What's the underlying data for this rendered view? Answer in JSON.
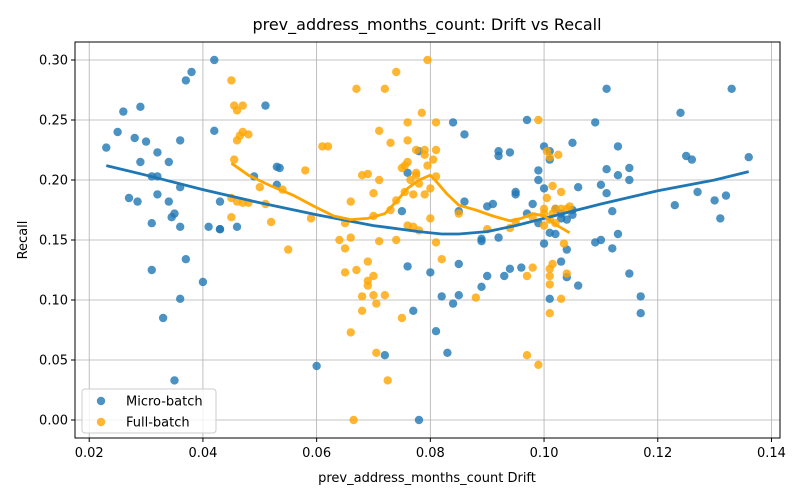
{
  "chart_data": {
    "type": "scatter",
    "title": "prev_address_months_count: Drift vs Recall",
    "xlabel": "prev_address_months_count Drift",
    "ylabel": "Recall",
    "xlim": [
      0.0175,
      0.1415
    ],
    "ylim": [
      -0.015,
      0.315
    ],
    "xticks": [
      0.02,
      0.04,
      0.06,
      0.08,
      0.1,
      0.12,
      0.14
    ],
    "xtick_labels": [
      "0.02",
      "0.04",
      "0.06",
      "0.08",
      "0.10",
      "0.12",
      "0.14"
    ],
    "yticks": [
      0.0,
      0.05,
      0.1,
      0.15,
      0.2,
      0.25,
      0.3
    ],
    "ytick_labels": [
      "0.00",
      "0.05",
      "0.10",
      "0.15",
      "0.20",
      "0.25",
      "0.30"
    ],
    "grid": true,
    "legend_position": "lower-left",
    "series": [
      {
        "name": "Micro-batch",
        "color": "#1f77b4",
        "points": [
          [
            0.023,
            0.227
          ],
          [
            0.025,
            0.24
          ],
          [
            0.026,
            0.257
          ],
          [
            0.027,
            0.185
          ],
          [
            0.028,
            0.235
          ],
          [
            0.0285,
            0.182
          ],
          [
            0.029,
            0.261
          ],
          [
            0.029,
            0.215
          ],
          [
            0.03,
            0.232
          ],
          [
            0.031,
            0.125
          ],
          [
            0.031,
            0.164
          ],
          [
            0.031,
            0.203
          ],
          [
            0.032,
            0.223
          ],
          [
            0.032,
            0.203
          ],
          [
            0.032,
            0.188
          ],
          [
            0.033,
            0.085
          ],
          [
            0.034,
            0.215
          ],
          [
            0.034,
            0.182
          ],
          [
            0.0345,
            0.169
          ],
          [
            0.035,
            0.172
          ],
          [
            0.035,
            0.033
          ],
          [
            0.036,
            0.101
          ],
          [
            0.036,
            0.161
          ],
          [
            0.036,
            0.233
          ],
          [
            0.036,
            0.194
          ],
          [
            0.037,
            0.134
          ],
          [
            0.037,
            0.283
          ],
          [
            0.038,
            0.29
          ],
          [
            0.04,
            0.115
          ],
          [
            0.041,
            0.161
          ],
          [
            0.042,
            0.241
          ],
          [
            0.042,
            0.3
          ],
          [
            0.043,
            0.159
          ],
          [
            0.043,
            0.159
          ],
          [
            0.043,
            0.182
          ],
          [
            0.046,
            0.161
          ],
          [
            0.049,
            0.203
          ],
          [
            0.051,
            0.262
          ],
          [
            0.053,
            0.211
          ],
          [
            0.053,
            0.196
          ],
          [
            0.0535,
            0.21
          ],
          [
            0.06,
            0.045
          ],
          [
            0.072,
            0.054
          ],
          [
            0.075,
            0.174
          ],
          [
            0.076,
            0.128
          ],
          [
            0.076,
            0.206
          ],
          [
            0.077,
            0.091
          ],
          [
            0.078,
            0.0
          ],
          [
            0.078,
            0.224
          ],
          [
            0.08,
            0.123
          ],
          [
            0.081,
            0.074
          ],
          [
            0.082,
            0.103
          ],
          [
            0.083,
            0.056
          ],
          [
            0.084,
            0.248
          ],
          [
            0.084,
            0.097
          ],
          [
            0.085,
            0.104
          ],
          [
            0.085,
            0.174
          ],
          [
            0.085,
            0.13
          ],
          [
            0.086,
            0.238
          ],
          [
            0.086,
            0.182
          ],
          [
            0.089,
            0.111
          ],
          [
            0.089,
            0.151
          ],
          [
            0.089,
            0.149
          ],
          [
            0.09,
            0.12
          ],
          [
            0.09,
            0.178
          ],
          [
            0.091,
            0.18
          ],
          [
            0.092,
            0.224
          ],
          [
            0.092,
            0.22
          ],
          [
            0.092,
            0.152
          ],
          [
            0.093,
            0.12
          ],
          [
            0.094,
            0.126
          ],
          [
            0.094,
            0.223
          ],
          [
            0.095,
            0.188
          ],
          [
            0.095,
            0.19
          ],
          [
            0.096,
            0.127
          ],
          [
            0.097,
            0.172
          ],
          [
            0.097,
            0.25
          ],
          [
            0.098,
            0.18
          ],
          [
            0.099,
            0.208
          ],
          [
            0.099,
            0.2
          ],
          [
            0.099,
            0.164
          ],
          [
            0.1,
            0.228
          ],
          [
            0.1,
            0.193
          ],
          [
            0.1,
            0.147
          ],
          [
            0.101,
            0.224
          ],
          [
            0.101,
            0.217
          ],
          [
            0.101,
            0.101
          ],
          [
            0.101,
            0.156
          ],
          [
            0.102,
            0.155
          ],
          [
            0.102,
            0.176
          ],
          [
            0.103,
            0.172
          ],
          [
            0.103,
            0.168
          ],
          [
            0.103,
            0.132
          ],
          [
            0.104,
            0.167
          ],
          [
            0.104,
            0.142
          ],
          [
            0.104,
            0.119
          ],
          [
            0.105,
            0.231
          ],
          [
            0.105,
            0.171
          ],
          [
            0.105,
            0.175
          ],
          [
            0.106,
            0.194
          ],
          [
            0.106,
            0.112
          ],
          [
            0.109,
            0.248
          ],
          [
            0.109,
            0.148
          ],
          [
            0.11,
            0.196
          ],
          [
            0.11,
            0.15
          ],
          [
            0.111,
            0.209
          ],
          [
            0.111,
            0.189
          ],
          [
            0.111,
            0.276
          ],
          [
            0.112,
            0.143
          ],
          [
            0.112,
            0.174
          ],
          [
            0.113,
            0.204
          ],
          [
            0.113,
            0.228
          ],
          [
            0.113,
            0.155
          ],
          [
            0.115,
            0.122
          ],
          [
            0.115,
            0.21
          ],
          [
            0.115,
            0.2
          ],
          [
            0.117,
            0.103
          ],
          [
            0.117,
            0.089
          ],
          [
            0.123,
            0.179
          ],
          [
            0.124,
            0.256
          ],
          [
            0.125,
            0.22
          ],
          [
            0.126,
            0.217
          ],
          [
            0.127,
            0.19
          ],
          [
            0.13,
            0.183
          ],
          [
            0.131,
            0.168
          ],
          [
            0.132,
            0.187
          ],
          [
            0.133,
            0.276
          ],
          [
            0.136,
            0.219
          ]
        ],
        "trend": [
          [
            0.023,
            0.212
          ],
          [
            0.03,
            0.204
          ],
          [
            0.04,
            0.192
          ],
          [
            0.05,
            0.181
          ],
          [
            0.06,
            0.171
          ],
          [
            0.07,
            0.162
          ],
          [
            0.078,
            0.157
          ],
          [
            0.082,
            0.155
          ],
          [
            0.085,
            0.155
          ],
          [
            0.09,
            0.157
          ],
          [
            0.095,
            0.162
          ],
          [
            0.1,
            0.168
          ],
          [
            0.11,
            0.18
          ],
          [
            0.12,
            0.191
          ],
          [
            0.13,
            0.2
          ],
          [
            0.136,
            0.207
          ]
        ]
      },
      {
        "name": "Full-batch",
        "color": "#ffa500",
        "points": [
          [
            0.045,
            0.283
          ],
          [
            0.045,
            0.185
          ],
          [
            0.045,
            0.169
          ],
          [
            0.0455,
            0.217
          ],
          [
            0.0455,
            0.262
          ],
          [
            0.046,
            0.258
          ],
          [
            0.046,
            0.182
          ],
          [
            0.046,
            0.233
          ],
          [
            0.0465,
            0.237
          ],
          [
            0.047,
            0.262
          ],
          [
            0.047,
            0.24
          ],
          [
            0.047,
            0.181
          ],
          [
            0.048,
            0.238
          ],
          [
            0.048,
            0.181
          ],
          [
            0.05,
            0.194
          ],
          [
            0.051,
            0.18
          ],
          [
            0.052,
            0.165
          ],
          [
            0.054,
            0.192
          ],
          [
            0.055,
            0.142
          ],
          [
            0.058,
            0.208
          ],
          [
            0.059,
            0.168
          ],
          [
            0.061,
            0.228
          ],
          [
            0.062,
            0.228
          ],
          [
            0.064,
            0.15
          ],
          [
            0.065,
            0.123
          ],
          [
            0.065,
            0.143
          ],
          [
            0.065,
            0.164
          ],
          [
            0.066,
            0.073
          ],
          [
            0.066,
            0.152
          ],
          [
            0.066,
            0.182
          ],
          [
            0.0665,
            0.0
          ],
          [
            0.067,
            0.276
          ],
          [
            0.067,
            0.125
          ],
          [
            0.068,
            0.204
          ],
          [
            0.068,
            0.103
          ],
          [
            0.068,
            0.091
          ],
          [
            0.069,
            0.132
          ],
          [
            0.069,
            0.116
          ],
          [
            0.069,
            0.112
          ],
          [
            0.069,
            0.205
          ],
          [
            0.07,
            0.12
          ],
          [
            0.07,
            0.104
          ],
          [
            0.0705,
            0.097
          ],
          [
            0.07,
            0.17
          ],
          [
            0.07,
            0.189
          ],
          [
            0.0705,
            0.056
          ],
          [
            0.071,
            0.149
          ],
          [
            0.071,
            0.241
          ],
          [
            0.071,
            0.2
          ],
          [
            0.072,
            0.276
          ],
          [
            0.072,
            0.104
          ],
          [
            0.0725,
            0.033
          ],
          [
            0.073,
            0.231
          ],
          [
            0.073,
            0.175
          ],
          [
            0.074,
            0.29
          ],
          [
            0.074,
            0.183
          ],
          [
            0.074,
            0.15
          ],
          [
            0.075,
            0.085
          ],
          [
            0.075,
            0.21
          ],
          [
            0.0755,
            0.212
          ],
          [
            0.0755,
            0.19
          ],
          [
            0.076,
            0.248
          ],
          [
            0.076,
            0.233
          ],
          [
            0.076,
            0.162
          ],
          [
            0.076,
            0.215
          ],
          [
            0.0765,
            0.2
          ],
          [
            0.077,
            0.188
          ],
          [
            0.077,
            0.161
          ],
          [
            0.0775,
            0.225
          ],
          [
            0.0775,
            0.206
          ],
          [
            0.0775,
            0.204
          ],
          [
            0.078,
            0.197
          ],
          [
            0.078,
            0.158
          ],
          [
            0.0785,
            0.256
          ],
          [
            0.079,
            0.221
          ],
          [
            0.079,
            0.225
          ],
          [
            0.079,
            0.188
          ],
          [
            0.0795,
            0.3
          ],
          [
            0.0795,
            0.212
          ],
          [
            0.08,
            0.193
          ],
          [
            0.08,
            0.168
          ],
          [
            0.0805,
            0.217
          ],
          [
            0.081,
            0.225
          ],
          [
            0.081,
            0.203
          ],
          [
            0.081,
            0.248
          ],
          [
            0.081,
            0.148
          ],
          [
            0.082,
            0.134
          ],
          [
            0.085,
            0.172
          ],
          [
            0.088,
            0.102
          ],
          [
            0.09,
            0.159
          ],
          [
            0.094,
            0.16
          ],
          [
            0.095,
            0.165
          ],
          [
            0.097,
            0.054
          ],
          [
            0.097,
            0.12
          ],
          [
            0.098,
            0.127
          ],
          [
            0.098,
            0.169
          ],
          [
            0.099,
            0.046
          ],
          [
            0.099,
            0.25
          ],
          [
            0.1,
            0.176
          ],
          [
            0.1,
            0.172
          ],
          [
            0.1,
            0.162
          ],
          [
            0.1005,
            0.224
          ],
          [
            0.1005,
            0.185
          ],
          [
            0.101,
            0.219
          ],
          [
            0.101,
            0.113
          ],
          [
            0.101,
            0.12
          ],
          [
            0.101,
            0.126
          ],
          [
            0.101,
            0.089
          ],
          [
            0.101,
            0.167
          ],
          [
            0.1015,
            0.195
          ],
          [
            0.1015,
            0.13
          ],
          [
            0.1015,
            0.172
          ],
          [
            0.102,
            0.176
          ],
          [
            0.102,
            0.164
          ],
          [
            0.1025,
            0.221
          ],
          [
            0.103,
            0.101
          ],
          [
            0.103,
            0.19
          ],
          [
            0.103,
            0.176
          ],
          [
            0.1035,
            0.147
          ],
          [
            0.104,
            0.122
          ],
          [
            0.104,
            0.176
          ],
          [
            0.1045,
            0.178
          ]
        ],
        "trend": [
          [
            0.045,
            0.214
          ],
          [
            0.048,
            0.204
          ],
          [
            0.052,
            0.195
          ],
          [
            0.056,
            0.187
          ],
          [
            0.06,
            0.177
          ],
          [
            0.063,
            0.17
          ],
          [
            0.066,
            0.167
          ],
          [
            0.069,
            0.168
          ],
          [
            0.072,
            0.172
          ],
          [
            0.074,
            0.182
          ],
          [
            0.076,
            0.193
          ],
          [
            0.078,
            0.2
          ],
          [
            0.08,
            0.204
          ],
          [
            0.081,
            0.199
          ],
          [
            0.083,
            0.188
          ],
          [
            0.085,
            0.179
          ],
          [
            0.088,
            0.175
          ],
          [
            0.091,
            0.17
          ],
          [
            0.094,
            0.166
          ],
          [
            0.096,
            0.168
          ],
          [
            0.098,
            0.172
          ],
          [
            0.1,
            0.17
          ],
          [
            0.102,
            0.163
          ],
          [
            0.1045,
            0.156
          ]
        ]
      }
    ]
  }
}
